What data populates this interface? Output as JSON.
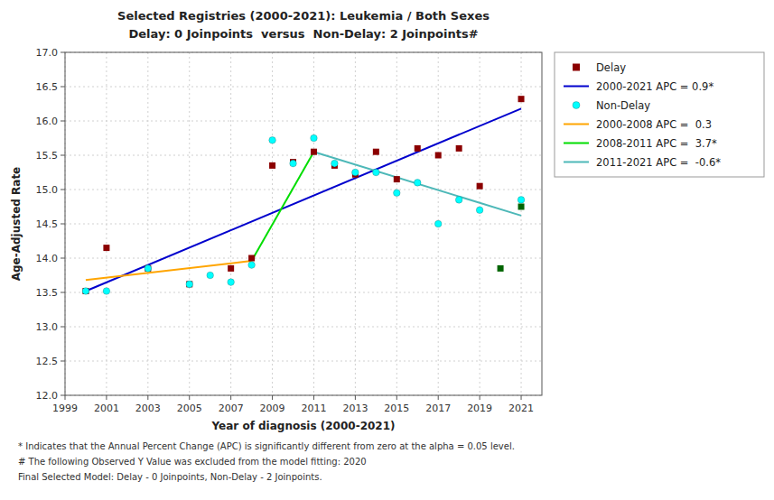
{
  "chart_data": {
    "type": "scatter",
    "title": "Selected Registries (2000-2021): Leukemia / Both Sexes",
    "subtitle": "Delay: 0 Joinpoints  versus  Non-Delay: 2 Joinpoints#",
    "x_label": "Year of diagnosis (2000-2021)",
    "y_label": "Age-Adjusted Rate",
    "xlim": [
      1999,
      2022
    ],
    "ylim": [
      12,
      17
    ],
    "xticks": [
      1999,
      2001,
      2003,
      2005,
      2007,
      2009,
      2011,
      2013,
      2015,
      2017,
      2019,
      2021
    ],
    "yticks": [
      {
        "value": 12,
        "label": "12.0"
      },
      12.5,
      {
        "value": 13,
        "label": "13.0"
      },
      13.5,
      {
        "value": 14,
        "label": "14.0"
      },
      14.5,
      {
        "value": 15,
        "label": "15.0"
      },
      15.5,
      {
        "value": 16,
        "label": "16.0"
      },
      16.5,
      {
        "value": 17,
        "label": "17.0"
      }
    ],
    "grid": true,
    "legend": "right",
    "series": [
      {
        "name": "Delay",
        "type": "scatter",
        "marker": "square",
        "color": "#8B0000",
        "x": [
          2000,
          2001,
          2003,
          2005,
          2007,
          2008,
          2009,
          2010,
          2011,
          2012,
          2013,
          2014,
          2015,
          2016,
          2017,
          2018,
          2019,
          2021
        ],
        "values": [
          13.52,
          14.15,
          13.85,
          13.62,
          13.85,
          14.0,
          15.35,
          15.4,
          15.55,
          15.35,
          15.22,
          15.55,
          15.15,
          15.6,
          15.5,
          15.6,
          15.05,
          16.32
        ]
      },
      {
        "name": "2000-2021 APC = 0.9*",
        "type": "line",
        "color": "#0000CD",
        "x": [
          2000,
          2021
        ],
        "values": [
          13.52,
          16.18
        ]
      },
      {
        "name": "Non-Delay",
        "type": "scatter",
        "marker": "circle",
        "color": "#00FFFF",
        "x": [
          2000,
          2001,
          2003,
          2005,
          2006,
          2007,
          2008,
          2009,
          2010,
          2011,
          2012,
          2013,
          2014,
          2015,
          2016,
          2017,
          2018,
          2019,
          2021
        ],
        "values": [
          13.52,
          13.52,
          13.85,
          13.62,
          13.75,
          13.65,
          13.9,
          15.72,
          15.38,
          15.75,
          15.38,
          15.25,
          15.25,
          14.95,
          15.1,
          14.5,
          14.85,
          14.7,
          14.85
        ]
      },
      {
        "name": "2000-2008 APC =  0.3",
        "type": "line",
        "color": "#FFA500",
        "x": [
          2000,
          2008
        ],
        "values": [
          13.68,
          13.96
        ]
      },
      {
        "name": "2008-2011 APC =  3.7*",
        "type": "line",
        "color": "#00DD00",
        "x": [
          2008,
          2011
        ],
        "values": [
          13.96,
          15.55
        ]
      },
      {
        "name": "2011-2021 APC =  -0.6*",
        "type": "line",
        "color": "#4DB8B8",
        "x": [
          2011,
          2021
        ],
        "values": [
          15.55,
          14.62
        ]
      },
      {
        "type": "scatter",
        "marker": "square",
        "color": "#006400",
        "x": [
          2020,
          2021
        ],
        "values": [
          13.85,
          14.75
        ]
      }
    ],
    "annotations": [
      "* Indicates that the Annual Percent Change (APC) is significantly different from zero at the alpha = 0.05 level.",
      "# The following Observed Y Value was excluded from the model fitting: 2020",
      "Final Selected Model: Delay - 0 Joinpoints, Non-Delay - 2 Joinpoints."
    ]
  }
}
